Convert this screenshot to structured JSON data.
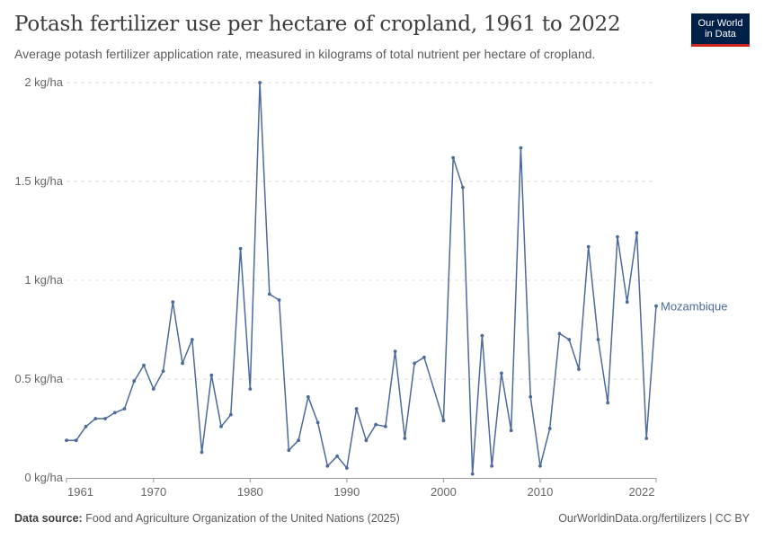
{
  "header": {
    "title": "Potash fertilizer use per hectare of cropland, 1961 to 2022",
    "subtitle": "Average potash fertilizer application rate, measured in kilograms of total nutrient per hectare of cropland.",
    "logo_line1": "Our World",
    "logo_line2": "in Data"
  },
  "footer": {
    "source_label": "Data source:",
    "source_text": "Food and Agriculture Organization of the United Nations (2025)",
    "link_text": "OurWorldinData.org/fertilizers",
    "separator": " | ",
    "license": "CC BY"
  },
  "colors": {
    "series": "#4c6a9c",
    "grid": "#dddddd",
    "axis": "#999999",
    "tick_text": "#666666"
  },
  "chart_data": {
    "type": "line",
    "title": "Potash fertilizer use per hectare of cropland, 1961 to 2022",
    "xlabel": "",
    "ylabel": "",
    "xlim": [
      1961,
      2022
    ],
    "ylim": [
      0,
      2
    ],
    "y_ticks": [
      0,
      0.5,
      1,
      1.5,
      2
    ],
    "y_tick_labels": [
      "0 kg/ha",
      "0.5 kg/ha",
      "1 kg/ha",
      "1.5 kg/ha",
      "2 kg/ha"
    ],
    "x_ticks": [
      1961,
      1970,
      1980,
      1990,
      2000,
      2010,
      2022
    ],
    "x_tick_labels": [
      "1961",
      "1970",
      "1980",
      "1990",
      "2000",
      "2010",
      "2022"
    ],
    "grid": true,
    "series": [
      {
        "name": "Mozambique",
        "x": [
          1961,
          1962,
          1963,
          1964,
          1965,
          1966,
          1967,
          1968,
          1969,
          1970,
          1971,
          1972,
          1973,
          1974,
          1975,
          1976,
          1977,
          1978,
          1979,
          1980,
          1981,
          1982,
          1983,
          1984,
          1985,
          1986,
          1987,
          1988,
          1989,
          1990,
          1991,
          1992,
          1993,
          1994,
          1995,
          1996,
          1997,
          1998,
          2000,
          2001,
          2002,
          2003,
          2004,
          2005,
          2006,
          2007,
          2008,
          2009,
          2010,
          2011,
          2012,
          2013,
          2014,
          2015,
          2016,
          2017,
          2018,
          2019,
          2020,
          2021,
          2022
        ],
        "values": [
          0.19,
          0.19,
          0.26,
          0.3,
          0.3,
          0.33,
          0.35,
          0.49,
          0.57,
          0.45,
          0.54,
          0.89,
          0.58,
          0.7,
          0.13,
          0.52,
          0.26,
          0.32,
          1.16,
          0.45,
          2.0,
          0.93,
          0.9,
          0.14,
          0.19,
          0.41,
          0.28,
          0.06,
          0.11,
          0.05,
          0.35,
          0.19,
          0.27,
          0.26,
          0.64,
          0.2,
          0.58,
          0.61,
          0.29,
          1.62,
          1.47,
          0.02,
          0.72,
          0.06,
          0.53,
          0.24,
          1.67,
          0.41,
          0.06,
          0.25,
          0.73,
          0.7,
          0.55,
          1.17,
          0.7,
          0.38,
          1.22,
          0.89,
          1.24,
          0.2,
          0.87
        ]
      }
    ]
  }
}
